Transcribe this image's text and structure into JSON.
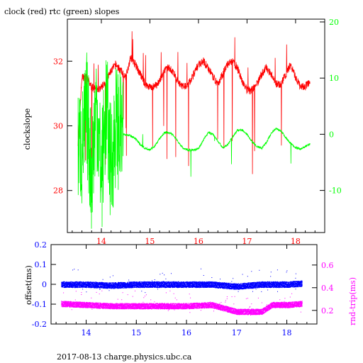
{
  "footer": "2017-08-13 charge.physics.ubc.ca",
  "colors": {
    "clock": "#ff0000",
    "rtc": "#00ff00",
    "offset": "#0000ff",
    "roundtrip": "#ff00ff",
    "frame": "#000000"
  },
  "chart_data": [
    {
      "type": "line",
      "title": "clock (red) rtc (green) slopes",
      "ylabel": "clockslope",
      "x_ticks": [
        "14",
        "15",
        "16",
        "17",
        "18"
      ],
      "xlim": [
        13.3,
        18.6
      ],
      "y_left_ticks": [
        "28",
        "30",
        "32"
      ],
      "ylim_left": [
        26.7,
        33.3
      ],
      "y_right_ticks": [
        "-10",
        "0",
        "10",
        "20"
      ],
      "ylim_right": [
        -17.5,
        20.5
      ],
      "series": [
        {
          "name": "clock",
          "axis": "left",
          "x": [
            13.52,
            13.6,
            13.7,
            13.8,
            13.9,
            14.0,
            14.1,
            14.2,
            14.3,
            14.4,
            14.5,
            14.6,
            14.7,
            14.8,
            14.9,
            15.0,
            15.1,
            15.2,
            15.3,
            15.4,
            15.5,
            15.6,
            15.7,
            15.8,
            15.9,
            16.0,
            16.1,
            16.2,
            16.3,
            16.4,
            16.5,
            16.6,
            16.7,
            16.8,
            16.9,
            17.0,
            17.1,
            17.2,
            17.3,
            17.4,
            17.5,
            17.6,
            17.7,
            17.8,
            17.9,
            18.0,
            18.1,
            18.2,
            18.3
          ],
          "values": [
            29.5,
            31.5,
            31.5,
            31.2,
            31.1,
            31.2,
            31.4,
            31.7,
            31.9,
            31.7,
            31.5,
            32.1,
            31.9,
            31.6,
            31.3,
            31.2,
            31.2,
            31.4,
            31.7,
            31.8,
            31.6,
            31.3,
            31.2,
            31.3,
            31.6,
            31.9,
            32.0,
            31.8,
            31.5,
            31.3,
            31.6,
            31.9,
            32.0,
            31.8,
            31.4,
            31.1,
            31.1,
            31.3,
            31.6,
            31.8,
            31.6,
            31.3,
            31.3,
            31.6,
            31.9,
            31.5,
            31.2,
            31.2,
            31.4
          ]
        },
        {
          "name": "rtc",
          "axis": "right",
          "x": [
            13.52,
            13.6,
            13.7,
            13.8,
            13.9,
            14.0,
            14.1,
            14.2,
            14.3,
            14.4,
            14.5,
            14.6,
            14.7,
            14.8,
            14.9,
            15.0,
            15.1,
            15.2,
            15.3,
            15.4,
            15.5,
            15.6,
            15.7,
            15.8,
            15.9,
            16.0,
            16.1,
            16.2,
            16.3,
            16.4,
            16.5,
            16.6,
            16.7,
            16.8,
            16.9,
            17.0,
            17.1,
            17.2,
            17.3,
            17.4,
            17.5,
            17.6,
            17.7,
            17.8,
            17.9,
            18.0,
            18.1,
            18.2,
            18.3
          ],
          "values": [
            -1,
            -3,
            4,
            -7,
            6,
            -8,
            5,
            -6,
            2,
            0,
            0,
            -0.3,
            -0.8,
            -1.8,
            -2.5,
            -2.7,
            -2.1,
            -0.8,
            0.3,
            0.3,
            -0.3,
            -1.6,
            -2.6,
            -2.8,
            -2.8,
            -2.6,
            -1.0,
            0.3,
            0.0,
            -1.2,
            -2.4,
            -1.9,
            -0.5,
            0.7,
            0.8,
            0.0,
            -1.3,
            -2.2,
            -2.5,
            -1.5,
            0.2,
            1.0,
            0.6,
            -0.6,
            -1.6,
            -2.4,
            -2.6,
            -2.2,
            -1.7
          ]
        }
      ]
    },
    {
      "type": "scatter",
      "ylabel_left": "offset(ms)",
      "ylabel_right": "rnd-trip(ms)",
      "x_ticks": [
        "14",
        "15",
        "16",
        "17",
        "18"
      ],
      "xlim": [
        13.3,
        18.6
      ],
      "y_left_ticks": [
        "-0.2",
        "-0.1",
        "0",
        "0.1",
        "0.2"
      ],
      "ylim_left": [
        -0.2,
        0.2
      ],
      "y_right_ticks": [
        "0.2",
        "0.4",
        "0.6"
      ],
      "ylim_right": [
        0.08,
        0.78
      ],
      "series": [
        {
          "name": "offset",
          "axis": "left",
          "x": [
            13.5,
            14.0,
            14.5,
            15.0,
            15.5,
            16.0,
            16.5,
            17.0,
            17.5,
            18.0,
            18.3
          ],
          "values": [
            0.0,
            0.0,
            -0.005,
            0.0,
            0.0,
            0.0,
            0.0,
            -0.01,
            0.0,
            0.0,
            0.005
          ]
        },
        {
          "name": "rnd-trip",
          "axis": "right",
          "x": [
            13.5,
            14.0,
            14.5,
            15.0,
            15.5,
            16.0,
            16.5,
            17.0,
            17.5,
            17.7,
            18.0,
            18.3
          ],
          "values": [
            0.26,
            0.25,
            0.24,
            0.24,
            0.24,
            0.24,
            0.25,
            0.19,
            0.19,
            0.25,
            0.25,
            0.26
          ]
        }
      ]
    }
  ]
}
